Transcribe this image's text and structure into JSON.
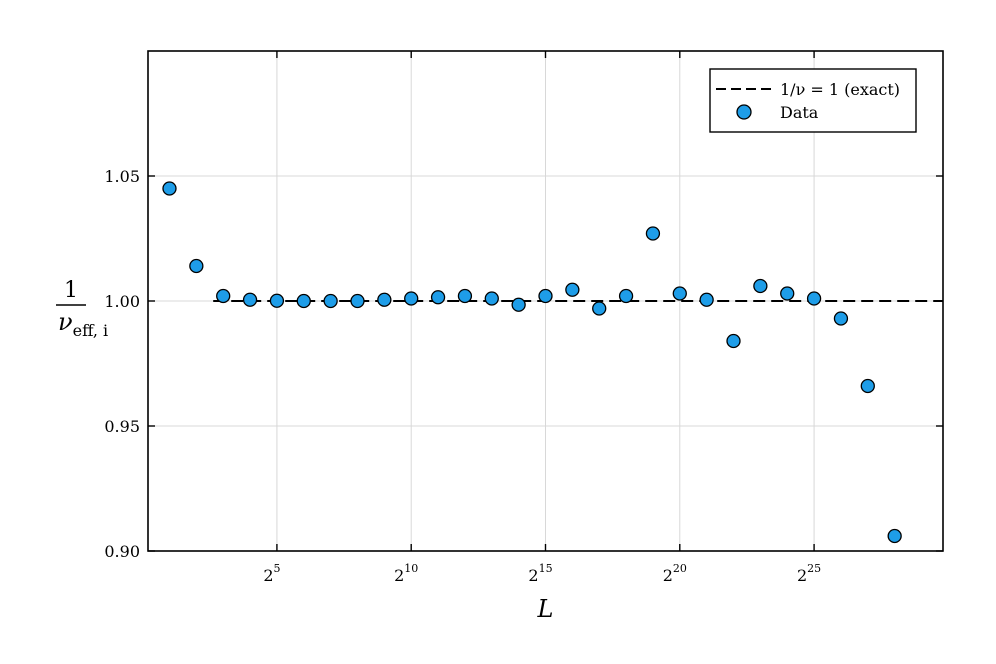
{
  "chart_data": {
    "type": "scatter",
    "title": "",
    "xlabel": "L",
    "ylabel": {
      "numerator": "1",
      "denominator_symbol": "ν",
      "denominator_subscript": "eff, i"
    },
    "xscale": "log2",
    "xlim_exponent": [
      0.2,
      29.8
    ],
    "ylim": [
      0.9,
      1.1
    ],
    "x_ticks": [
      {
        "base": "2",
        "exp": "5",
        "value_exp": 5
      },
      {
        "base": "2",
        "exp": "10",
        "value_exp": 10
      },
      {
        "base": "2",
        "exp": "15",
        "value_exp": 15
      },
      {
        "base": "2",
        "exp": "20",
        "value_exp": 20
      },
      {
        "base": "2",
        "exp": "25",
        "value_exp": 25
      }
    ],
    "y_ticks": [
      {
        "label": "0.90",
        "value": 0.9
      },
      {
        "label": "0.95",
        "value": 0.95
      },
      {
        "label": "1.00",
        "value": 1.0
      },
      {
        "label": "1.05",
        "value": 1.05
      }
    ],
    "grid": true,
    "legend_position": "top-right",
    "reference_line": {
      "y": 1.0,
      "style": "dashed",
      "color": "#000000",
      "legend": "1/ν = 1 (exact)"
    },
    "series": [
      {
        "name": "Data",
        "color": "#1e9de8",
        "x_exponent": [
          1,
          2,
          3,
          4,
          5,
          6,
          7,
          8,
          9,
          10,
          11,
          12,
          13,
          14,
          15,
          16,
          17,
          18,
          19,
          20,
          21,
          22,
          23,
          24,
          25,
          26,
          27,
          28
        ],
        "y": [
          1.045,
          1.014,
          1.002,
          1.0005,
          1.0001,
          1.0,
          1.0,
          1.0,
          1.0005,
          1.001,
          1.0015,
          1.002,
          1.001,
          0.9985,
          1.002,
          1.0045,
          0.997,
          1.002,
          1.027,
          1.003,
          1.0005,
          0.984,
          1.006,
          1.003,
          1.001,
          0.993,
          0.966,
          0.906
        ]
      }
    ]
  }
}
